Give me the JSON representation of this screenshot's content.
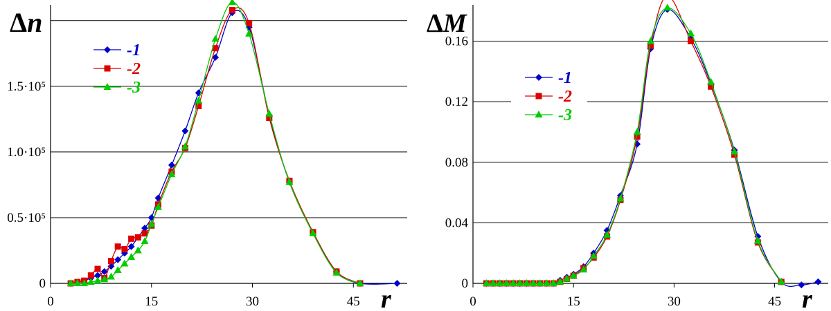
{
  "chart_data": [
    {
      "type": "line",
      "ylabel": "Δn",
      "xlabel": "r",
      "xlim": [
        0,
        53
      ],
      "ylim": [
        0,
        212000
      ],
      "xticks": [
        0,
        15,
        30,
        45
      ],
      "xtick_labels": [
        "0",
        "15",
        "30",
        "45"
      ],
      "yticks": [
        0,
        50000,
        100000,
        150000
      ],
      "ytick_labels": [
        "0",
        "0.5·10⁵",
        "1.0·10⁵",
        "1.5·10⁵"
      ],
      "grid_y": [
        0,
        50000,
        100000,
        150000,
        200000
      ],
      "legend_position": "top-left",
      "series": [
        {
          "name": "-1",
          "color": "#0000cc",
          "marker": "diamond",
          "x": [
            3,
            4,
            5,
            6,
            7,
            8,
            9,
            10,
            11,
            12,
            13,
            14,
            15,
            16,
            18,
            20,
            22,
            24.5,
            27,
            29.5,
            32.5,
            35.5,
            39,
            42.5,
            46,
            51.5
          ],
          "y": [
            0,
            1000,
            2000,
            4000,
            6000,
            9000,
            13000,
            18000,
            23000,
            28000,
            35000,
            42000,
            50000,
            65000,
            90000,
            116000,
            145000,
            172000,
            206000,
            195000,
            128000,
            77000,
            39000,
            9000,
            0,
            0
          ]
        },
        {
          "name": "-2",
          "color": "#dd0000",
          "marker": "square",
          "x": [
            3,
            4,
            5,
            6,
            7,
            8,
            9,
            10,
            11,
            12,
            13,
            14,
            15,
            16,
            18,
            20,
            22,
            24.5,
            27,
            29.5,
            32.5,
            35.5,
            39,
            42.5,
            46
          ],
          "y": [
            0,
            1000,
            2000,
            6000,
            11000,
            4000,
            17000,
            28000,
            26000,
            34000,
            35000,
            38000,
            44000,
            60000,
            85000,
            103000,
            135000,
            179000,
            208000,
            198000,
            126000,
            78000,
            39000,
            9000,
            0
          ]
        },
        {
          "name": "-3",
          "color": "#00cc00",
          "marker": "triangle",
          "x": [
            3,
            4,
            5,
            6,
            7,
            8,
            9,
            10,
            11,
            12,
            13,
            14,
            15,
            16,
            18,
            20,
            22,
            24.5,
            27,
            29.5,
            32.5,
            35.5,
            39,
            42.5,
            46
          ],
          "y": [
            0,
            0,
            0,
            1000,
            2000,
            3000,
            5000,
            10000,
            15000,
            20000,
            25000,
            32000,
            45000,
            58000,
            83000,
            104000,
            139000,
            186000,
            214000,
            190000,
            129000,
            77000,
            38000,
            8000,
            0
          ]
        }
      ]
    },
    {
      "type": "line",
      "ylabel": "ΔM",
      "xlabel": "r",
      "xlim": [
        0,
        53
      ],
      "ylim": [
        0,
        0.184
      ],
      "xticks": [
        0,
        15,
        30,
        45
      ],
      "xtick_labels": [
        "0",
        "15",
        "30",
        "45"
      ],
      "yticks": [
        0,
        0.04,
        0.08,
        0.12,
        0.16
      ],
      "ytick_labels": [
        "0",
        "0.04",
        "0.08",
        "0.12",
        "0.16"
      ],
      "grid_y": [
        0,
        0.04,
        0.08,
        0.12,
        0.16
      ],
      "legend_position": "top-left",
      "series": [
        {
          "name": "-1",
          "color": "#0000cc",
          "marker": "diamond",
          "x": [
            2,
            3,
            4,
            5,
            6,
            7,
            8,
            9,
            10,
            11,
            12,
            13,
            14,
            15,
            16.5,
            18,
            20,
            22,
            24.5,
            26.5,
            29,
            32.5,
            35.5,
            39,
            42.5,
            46,
            49,
            51.5
          ],
          "y": [
            0,
            0,
            0,
            0,
            0,
            0,
            0,
            0,
            0,
            0,
            0,
            0.002,
            0.004,
            0.006,
            0.011,
            0.02,
            0.035,
            0.058,
            0.092,
            0.155,
            0.181,
            0.162,
            0.132,
            0.088,
            0.031,
            0.001,
            -0.001,
            0.001
          ]
        },
        {
          "name": "-2",
          "color": "#dd0000",
          "marker": "square",
          "x": [
            2,
            3,
            4,
            5,
            6,
            7,
            8,
            9,
            10,
            11,
            12,
            13,
            14,
            15,
            16.5,
            18,
            20,
            22,
            24.5,
            26.5,
            29,
            32.5,
            35.5,
            39,
            42.5,
            46
          ],
          "y": [
            0,
            0,
            0,
            0,
            0,
            0,
            0,
            0,
            0,
            0,
            0,
            0.001,
            0.003,
            0.005,
            0.01,
            0.017,
            0.031,
            0.055,
            0.097,
            0.157,
            0.19,
            0.16,
            0.13,
            0.085,
            0.027,
            0.001
          ]
        },
        {
          "name": "-3",
          "color": "#00cc00",
          "marker": "triangle",
          "x": [
            2,
            3,
            4,
            5,
            6,
            7,
            8,
            9,
            10,
            11,
            12,
            13,
            14,
            15,
            16.5,
            18,
            20,
            22,
            24.5,
            26.5,
            29,
            32.5,
            35.5,
            39,
            42.5,
            46
          ],
          "y": [
            0,
            0,
            0,
            0,
            0,
            0,
            0,
            0,
            0,
            0,
            0,
            0.001,
            0.003,
            0.005,
            0.009,
            0.018,
            0.032,
            0.056,
            0.1,
            0.16,
            0.182,
            0.165,
            0.133,
            0.087,
            0.028,
            0.001
          ]
        }
      ]
    }
  ]
}
